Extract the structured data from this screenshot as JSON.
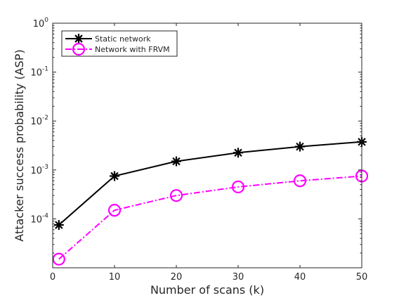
{
  "chart_data": {
    "type": "line",
    "x": [
      1,
      10,
      20,
      30,
      40,
      50
    ],
    "series": [
      {
        "name": "Static network",
        "values": [
          7.5e-05,
          0.00075,
          0.0015,
          0.00225,
          0.003,
          0.00375
        ],
        "color": "#000000",
        "line_style": "solid",
        "marker": "asterisk"
      },
      {
        "name": "Network with FRVM",
        "values": [
          1.5e-05,
          0.00015,
          0.0003,
          0.00045,
          0.0006,
          0.00075
        ],
        "color": "#ff00ff",
        "line_style": "dash-dot",
        "marker": "circle"
      }
    ],
    "xlabel": "Number of scans (k)",
    "ylabel": "Attacker success probability (ASP)",
    "xlim": [
      0,
      50
    ],
    "ylim": [
      1e-05,
      1
    ],
    "y_scale": "log",
    "x_ticks": [
      0,
      10,
      20,
      30,
      40,
      50
    ],
    "y_ticks": [
      {
        "value": 0.0001,
        "base": "10",
        "exp": "-4"
      },
      {
        "value": 0.001,
        "base": "10",
        "exp": "-3"
      },
      {
        "value": 0.01,
        "base": "10",
        "exp": "-2"
      },
      {
        "value": 0.1,
        "base": "10",
        "exp": "-1"
      },
      {
        "value": 1,
        "base": "10",
        "exp": "0"
      }
    ],
    "grid": false,
    "legend_position": "top-left"
  }
}
